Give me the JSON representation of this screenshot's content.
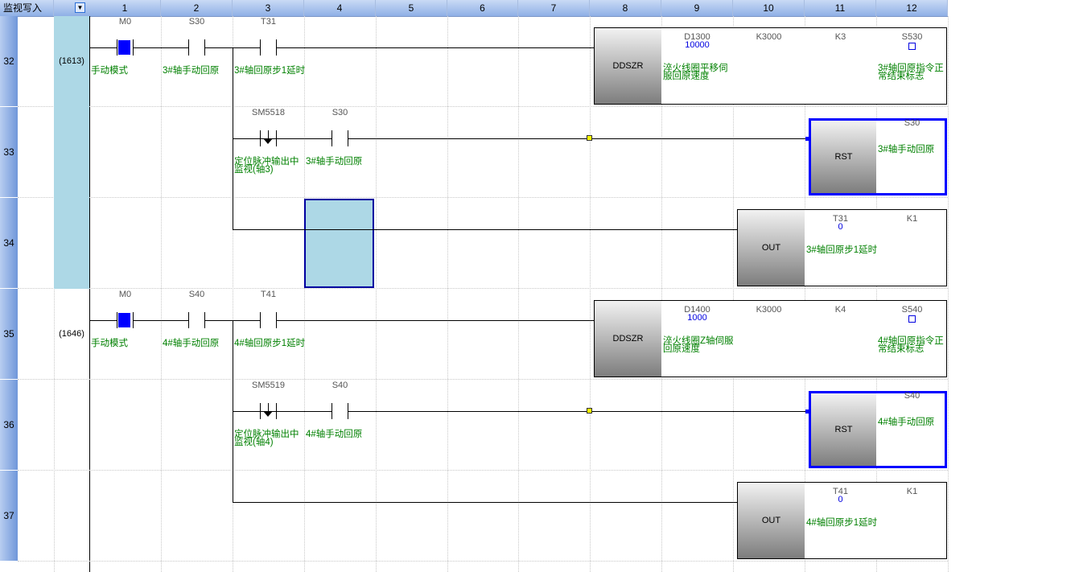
{
  "header": {
    "mode_label": "监视写入",
    "dropdown_icon": "chevron-down-icon",
    "columns": [
      "1",
      "2",
      "3",
      "4",
      "5",
      "6",
      "7",
      "8",
      "9",
      "10",
      "11",
      "12"
    ]
  },
  "colors": {
    "comment": "#008000",
    "selection": "#0000ff",
    "step_highlight": "#add8e6",
    "energized_contact": "#0000ff"
  },
  "rows": [
    {
      "num": "32",
      "step": "(1613)",
      "highlight": true,
      "contacts": [
        {
          "col": 1,
          "dev": "M0",
          "type": "no-on",
          "comment": "手动模式"
        },
        {
          "col": 2,
          "dev": "S30",
          "type": "no",
          "comment": "3#轴手动回原"
        },
        {
          "col": 3,
          "dev": "T31",
          "type": "no",
          "comment": "3#轴回原步1延时"
        }
      ],
      "instr": {
        "name": "DDSZR",
        "start": 8,
        "ops": [
          {
            "dev": "D1300",
            "value": "10000",
            "comment": "淬火线圈平移伺服回原速度"
          },
          {
            "dev": "K3000"
          },
          {
            "dev": "K3"
          },
          {
            "dev": "S530",
            "square": true,
            "comment": "3#轴回原指令正常结束标志"
          }
        ]
      }
    },
    {
      "num": "33",
      "step": "",
      "highlight": true,
      "branch": 3,
      "contacts": [
        {
          "col": 3,
          "dev": "SM5518",
          "type": "fall",
          "comment": "定位脉冲输出中监视(轴3)"
        },
        {
          "col": 4,
          "dev": "S30",
          "type": "no",
          "comment": "3#轴手动回原"
        }
      ],
      "instr": {
        "name": "RST",
        "start": 11,
        "selected": true,
        "ops": [
          {
            "dev": "S30",
            "comment": "3#轴手动回原"
          }
        ]
      }
    },
    {
      "num": "34",
      "step": "",
      "highlight": true,
      "branch": 3,
      "cursor": 4,
      "contacts": [],
      "instr": {
        "name": "OUT",
        "start": 10,
        "ops": [
          {
            "dev": "T31",
            "value": "0",
            "comment": "3#轴回原步1延时"
          },
          {
            "dev": "K1"
          }
        ]
      }
    },
    {
      "num": "35",
      "step": "(1646)",
      "highlight": false,
      "contacts": [
        {
          "col": 1,
          "dev": "M0",
          "type": "no-on",
          "comment": "手动模式"
        },
        {
          "col": 2,
          "dev": "S40",
          "type": "no",
          "comment": "4#轴手动回原"
        },
        {
          "col": 3,
          "dev": "T41",
          "type": "no",
          "comment": "4#轴回原步1延时"
        }
      ],
      "instr": {
        "name": "DDSZR",
        "start": 8,
        "ops": [
          {
            "dev": "D1400",
            "value": "1000",
            "comment": "淬火线圈Z轴伺服回原速度"
          },
          {
            "dev": "K3000"
          },
          {
            "dev": "K4"
          },
          {
            "dev": "S540",
            "square": true,
            "comment": "4#轴回原指令正常结束标志"
          }
        ]
      }
    },
    {
      "num": "36",
      "step": "",
      "highlight": false,
      "branch": 3,
      "contacts": [
        {
          "col": 3,
          "dev": "SM5519",
          "type": "fall",
          "comment": "定位脉冲输出中监视(轴4)"
        },
        {
          "col": 4,
          "dev": "S40",
          "type": "no",
          "comment": "4#轴手动回原"
        }
      ],
      "instr": {
        "name": "RST",
        "start": 11,
        "selected": true,
        "ops": [
          {
            "dev": "S40",
            "comment": "4#轴手动回原"
          }
        ]
      }
    },
    {
      "num": "37",
      "step": "",
      "highlight": false,
      "branch": 3,
      "contacts": [],
      "instr": {
        "name": "OUT",
        "start": 10,
        "ops": [
          {
            "dev": "T41",
            "value": "0",
            "comment": "4#轴回原步1延时"
          },
          {
            "dev": "K1"
          }
        ]
      }
    }
  ]
}
